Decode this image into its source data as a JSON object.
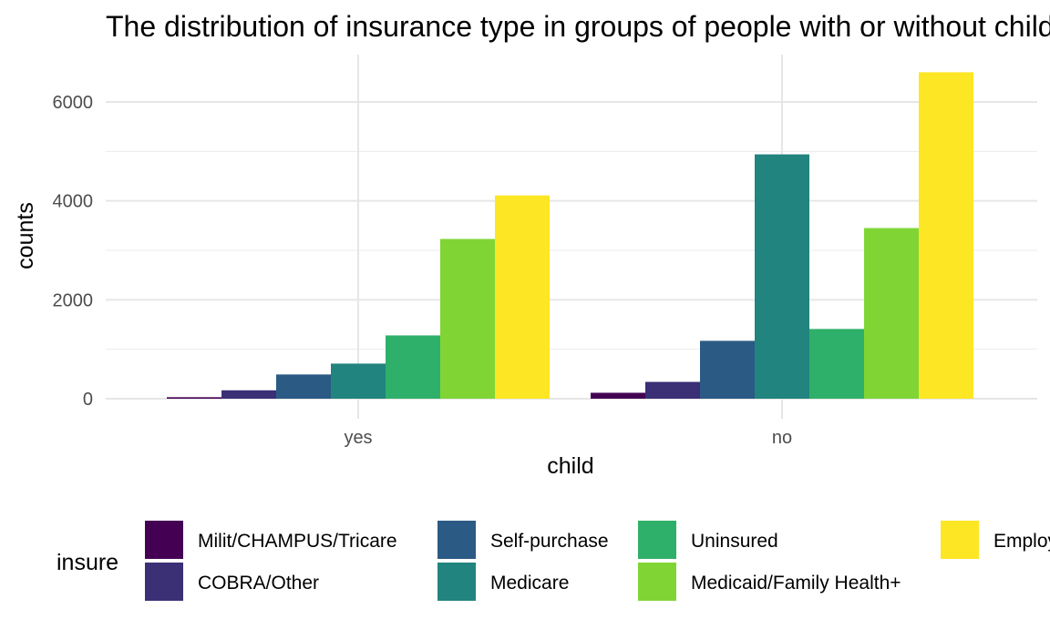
{
  "chart_data": {
    "type": "bar",
    "title": "The distribution of insurance type in groups of people with or without child",
    "xlabel": "child",
    "ylabel": "counts",
    "categories": [
      "yes",
      "no"
    ],
    "yticks": [
      "0",
      "2000",
      "4000",
      "6000"
    ],
    "ylim": [
      0,
      6600
    ],
    "grid": true,
    "legend_title": "insure",
    "legend_position": "bottom",
    "series": [
      {
        "name": "Milit/CHAMPUS/Tricare",
        "color": "#440154",
        "values": [
          30,
          120
        ]
      },
      {
        "name": "COBRA/Other",
        "color": "#3B2F76",
        "values": [
          170,
          340
        ]
      },
      {
        "name": "Self-purchase",
        "color": "#2B5A84",
        "values": [
          490,
          1170
        ]
      },
      {
        "name": "Medicare",
        "color": "#21847E",
        "values": [
          710,
          4940
        ]
      },
      {
        "name": "Uninsured",
        "color": "#2FB06A",
        "values": [
          1280,
          1410
        ]
      },
      {
        "name": "Medicaid/Family Health+",
        "color": "#80D535",
        "values": [
          3230,
          3450
        ]
      },
      {
        "name": "Employer",
        "color": "#FDE623",
        "values": [
          4110,
          6600
        ]
      }
    ]
  }
}
